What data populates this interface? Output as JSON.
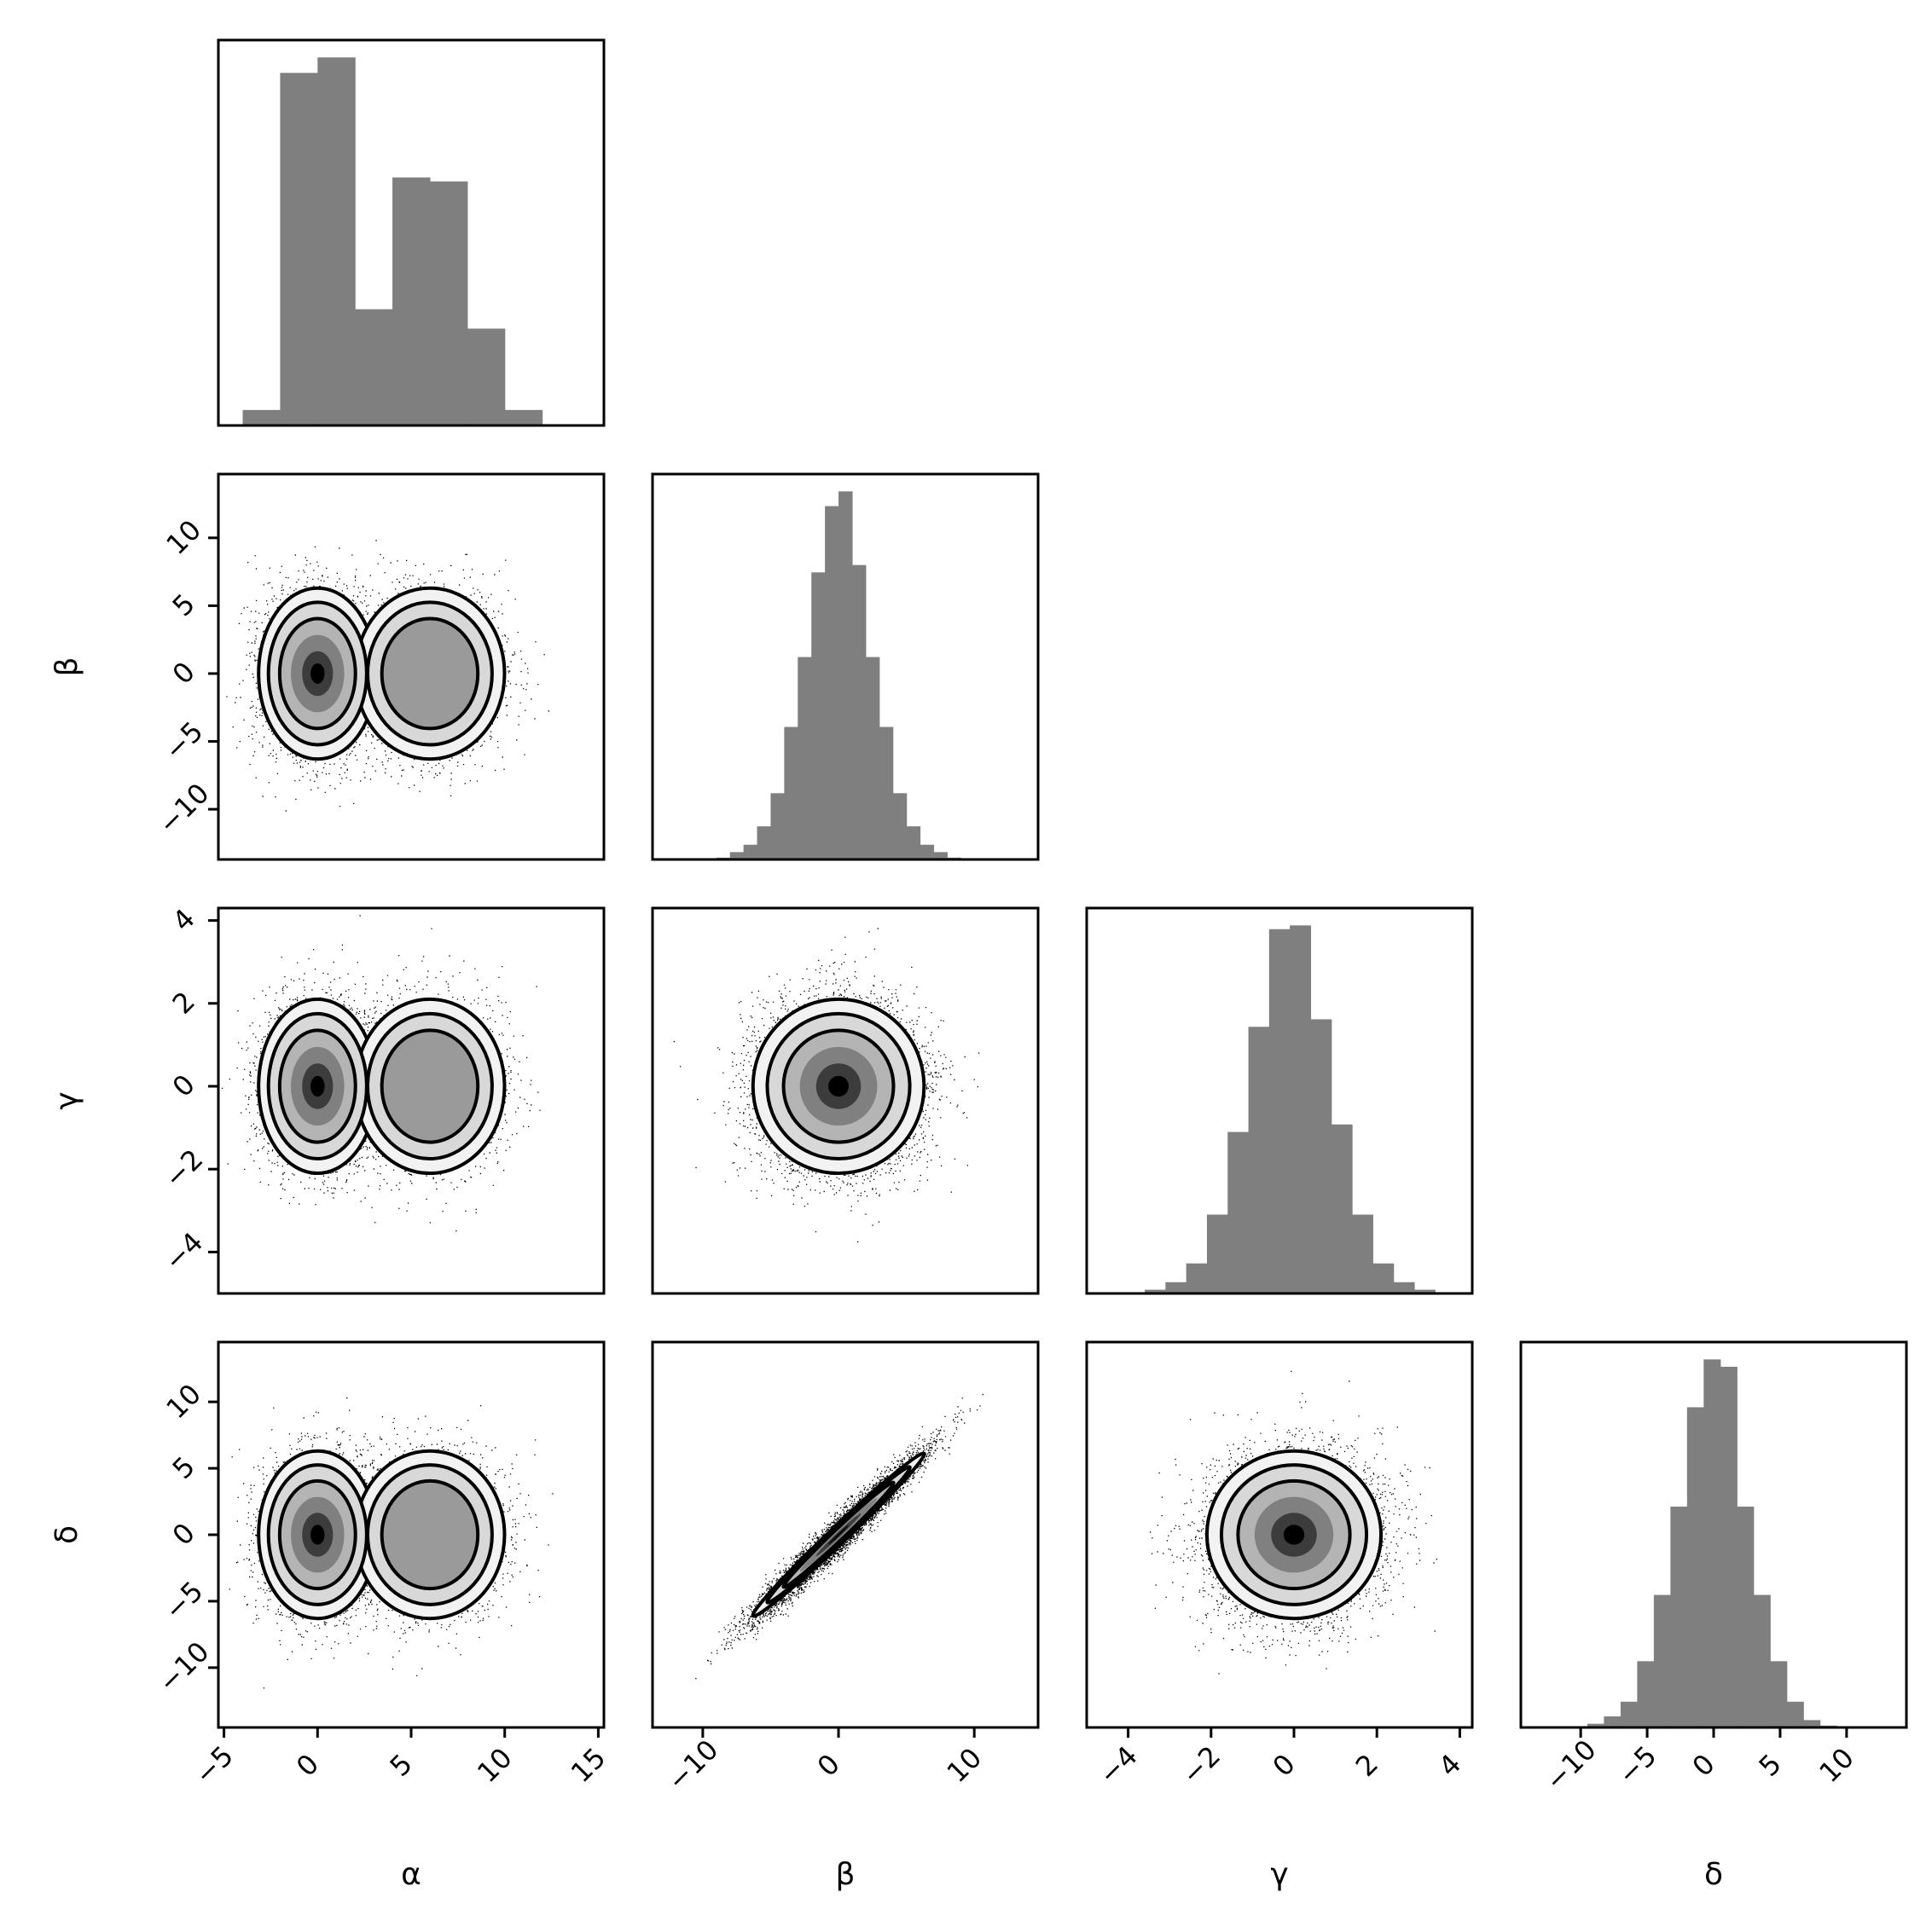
{
  "chart_data": {
    "type": "corner",
    "parameters": [
      "α",
      "β",
      "γ",
      "δ"
    ],
    "xlabels": [
      "α",
      "β",
      "γ",
      "δ"
    ],
    "ylabels": [
      "",
      "β",
      "γ",
      "δ"
    ],
    "ranges": {
      "α": [
        -5.3,
        15.3
      ],
      "β": [
        -13.7,
        14.7
      ],
      "γ": [
        -5.0,
        4.3
      ],
      "δ": [
        -14.5,
        14.5
      ]
    },
    "ticks": {
      "α": [
        -5,
        0,
        5,
        10,
        15
      ],
      "β": [
        -10,
        -5,
        0,
        5,
        10
      ],
      "γ": [
        -4,
        -2,
        0,
        2,
        4
      ],
      "δ": [
        -10,
        -5,
        0,
        5,
        10
      ]
    },
    "x_tick_values": {
      "α": [
        -5,
        0,
        5,
        10,
        15
      ],
      "β": [
        -10,
        0,
        10
      ],
      "γ": [
        -4,
        -2,
        0,
        2,
        4
      ],
      "δ": [
        -10,
        -5,
        0,
        5,
        10
      ]
    },
    "tick_label_rotation_deg": 45,
    "histograms": [
      {
        "param": "α",
        "type": "bar",
        "bin_edges": [
          -4,
          -2,
          0,
          2,
          4,
          6,
          8,
          10,
          12
        ],
        "heights": [
          0.04,
          0.91,
          0.95,
          0.3,
          0.64,
          0.63,
          0.25,
          0.04
        ]
      },
      {
        "param": "β",
        "type": "bar",
        "bin_edges": [
          -9,
          -8,
          -7,
          -6,
          -5,
          -4,
          -3,
          -2,
          -1,
          0,
          1,
          2,
          3,
          4,
          5,
          6,
          7,
          8,
          9
        ],
        "heights": [
          0.005,
          0.02,
          0.04,
          0.09,
          0.18,
          0.36,
          0.55,
          0.78,
          0.96,
          1.0,
          0.8,
          0.55,
          0.36,
          0.18,
          0.09,
          0.04,
          0.02,
          0.005
        ]
      },
      {
        "param": "γ",
        "type": "bar",
        "bin_edges": [
          -3.6,
          -3.1,
          -2.6,
          -2.1,
          -1.6,
          -1.1,
          -0.6,
          -0.1,
          0.4,
          0.9,
          1.4,
          1.9,
          2.4,
          2.9,
          3.4
        ],
        "heights": [
          0.01,
          0.03,
          0.08,
          0.21,
          0.43,
          0.71,
          0.97,
          0.98,
          0.73,
          0.45,
          0.21,
          0.08,
          0.03,
          0.01
        ]
      },
      {
        "param": "δ",
        "type": "bar",
        "bin_edges": [
          -9.5,
          -8.25,
          -7.0,
          -5.75,
          -4.5,
          -3.25,
          -2.0,
          -0.75,
          0.5,
          1.75,
          3.0,
          4.25,
          5.5,
          6.75,
          8.0,
          9.25
        ],
        "heights": [
          0.01,
          0.03,
          0.07,
          0.18,
          0.36,
          0.6,
          0.87,
          1.0,
          0.98,
          0.6,
          0.36,
          0.18,
          0.07,
          0.02,
          0.005
        ]
      }
    ],
    "scatter_panels": [
      {
        "x": "α",
        "y": "β",
        "centers": [
          [
            0,
            0
          ],
          [
            6,
            0
          ]
        ],
        "note": "bimodal in α, β spread σ≈3"
      },
      {
        "x": "α",
        "y": "γ",
        "centers": [
          [
            0,
            0
          ],
          [
            6,
            0
          ]
        ],
        "note": "bimodal in α, γ spread σ≈1"
      },
      {
        "x": "β",
        "y": "γ",
        "centers": [
          [
            0,
            0
          ]
        ],
        "note": "uncorrelated"
      },
      {
        "x": "α",
        "y": "δ",
        "centers": [
          [
            0,
            0
          ],
          [
            6,
            0
          ]
        ],
        "note": "bimodal in α, δ spread σ≈3"
      },
      {
        "x": "β",
        "y": "δ",
        "centers": [
          [
            0,
            0
          ]
        ],
        "note": "strong positive correlation ρ≈0.97"
      },
      {
        "x": "γ",
        "y": "δ",
        "centers": [
          [
            0,
            0
          ]
        ],
        "note": "uncorrelated"
      }
    ]
  }
}
